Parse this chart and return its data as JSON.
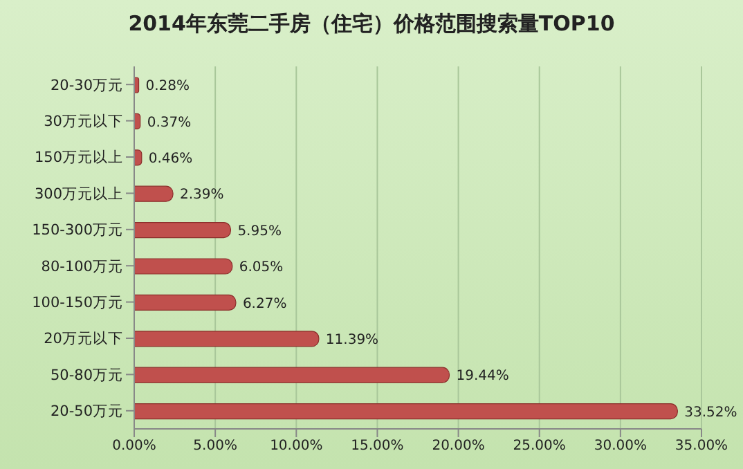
{
  "chart_data": {
    "type": "bar",
    "orientation": "horizontal",
    "title": "2014年东莞二手房（住宅）价格范围搜索量TOP10",
    "categories": [
      "20-30万元",
      "30万元以下",
      "150万元以上",
      "300万元以上",
      "150-300万元",
      "80-100万元",
      "100-150万元",
      "20万元以下",
      "50-80万元",
      "20-50万元"
    ],
    "values": [
      0.28,
      0.37,
      0.46,
      2.39,
      5.95,
      6.05,
      6.27,
      11.39,
      19.44,
      33.52
    ],
    "value_labels": [
      "0.28%",
      "0.37%",
      "0.46%",
      "2.39%",
      "5.95%",
      "6.05%",
      "6.27%",
      "11.39%",
      "19.44%",
      "33.52%"
    ],
    "color": "#c0504d",
    "xlim": [
      0,
      35
    ],
    "xticks": [
      {
        "value": 0,
        "label": "0.00%"
      },
      {
        "value": 5,
        "label": "5.00%"
      },
      {
        "value": 10,
        "label": "10.00%"
      },
      {
        "value": 15,
        "label": "15.00%"
      },
      {
        "value": 20,
        "label": "20.00%"
      },
      {
        "value": 25,
        "label": "25.00%"
      },
      {
        "value": 30,
        "label": "30.00%"
      },
      {
        "value": 35,
        "label": "35.00%"
      }
    ],
    "grid": "x"
  }
}
